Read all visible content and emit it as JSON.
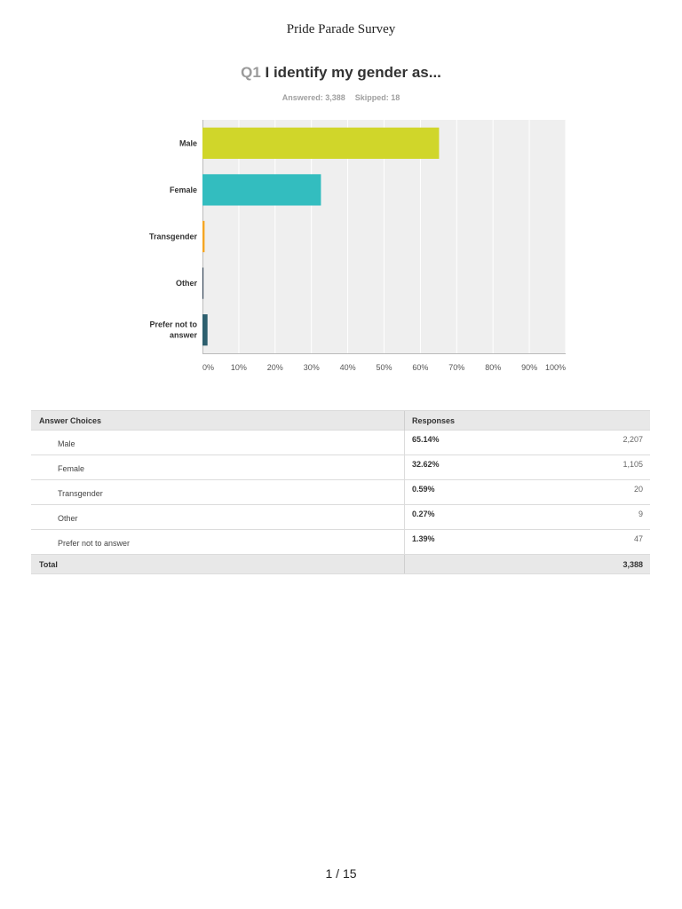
{
  "document": {
    "title": "Pride Parade Survey"
  },
  "question": {
    "number": "Q1",
    "text": "I identify my gender as...",
    "answered": "Answered: 3,388",
    "skipped": "Skipped: 18"
  },
  "chart_data": {
    "type": "bar",
    "orientation": "horizontal",
    "categories": [
      "Male",
      "Female",
      "Transgender",
      "Other",
      "Prefer not to answer"
    ],
    "values": [
      65.14,
      32.62,
      0.59,
      0.27,
      1.39
    ],
    "colors": [
      "#d0d62a",
      "#33bdbf",
      "#f5a623",
      "#2c3e50",
      "#2d5f6e"
    ],
    "xlim": [
      0,
      100
    ],
    "xticks": [
      "0%",
      "10%",
      "20%",
      "30%",
      "40%",
      "50%",
      "60%",
      "70%",
      "80%",
      "90%",
      "100%"
    ],
    "grid": true,
    "legend": "none"
  },
  "table": {
    "headers": {
      "choices": "Answer Choices",
      "responses": "Responses"
    },
    "rows": [
      {
        "choice": "Male",
        "percent": "65.14%",
        "count": "2,207"
      },
      {
        "choice": "Female",
        "percent": "32.62%",
        "count": "1,105"
      },
      {
        "choice": "Transgender",
        "percent": "0.59%",
        "count": "20"
      },
      {
        "choice": "Other",
        "percent": "0.27%",
        "count": "9"
      },
      {
        "choice": "Prefer not to answer",
        "percent": "1.39%",
        "count": "47"
      }
    ],
    "total": {
      "label": "Total",
      "value": "3,388"
    }
  },
  "footer": {
    "page": "1 / 15"
  }
}
